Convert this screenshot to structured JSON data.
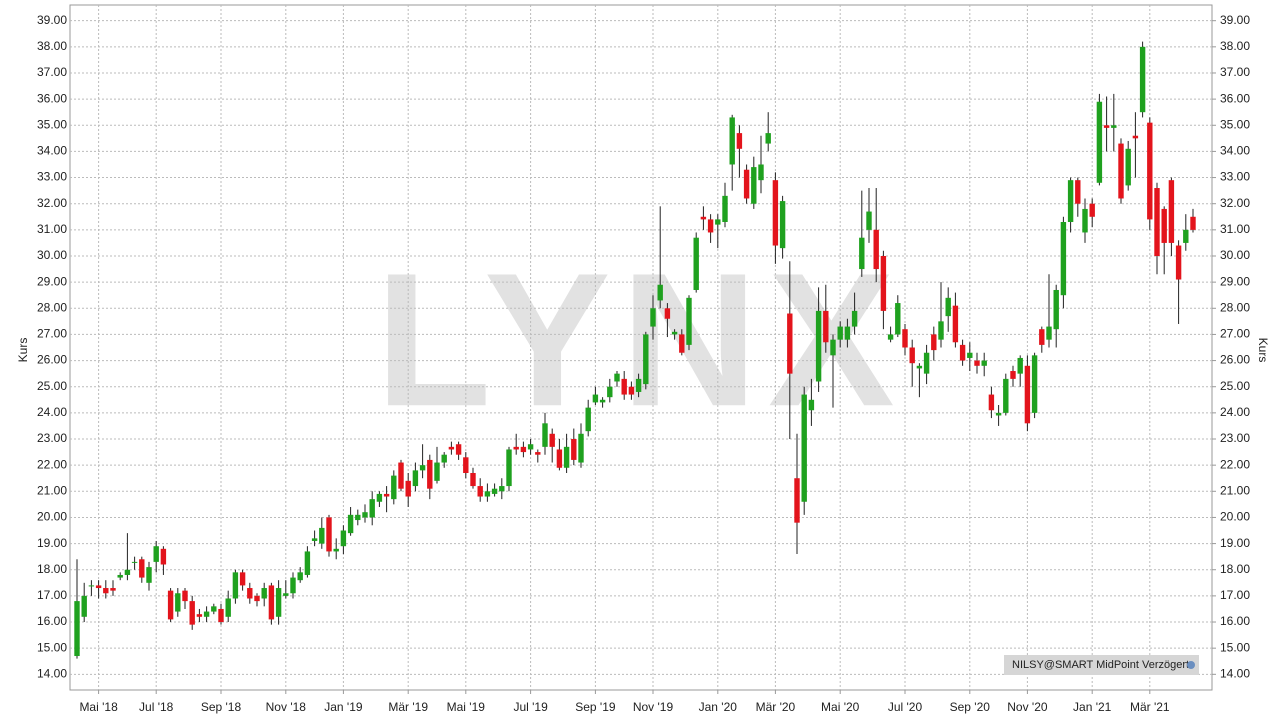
{
  "chart_data": {
    "type": "candlestick",
    "watermark": "LYNX",
    "ylabel": "Kurs",
    "note": "NILSY@SMART MidPoint Verzögert",
    "categories": [
      null,
      null,
      null,
      "Mai '18",
      null,
      null,
      null,
      null,
      null,
      null,
      null,
      "Jul '18",
      null,
      null,
      null,
      null,
      null,
      null,
      null,
      null,
      "Sep '18",
      null,
      null,
      null,
      null,
      null,
      null,
      null,
      null,
      "Nov '18",
      null,
      null,
      null,
      null,
      null,
      null,
      null,
      "Jan '19",
      null,
      null,
      null,
      null,
      null,
      null,
      null,
      null,
      "Mär '19",
      null,
      null,
      null,
      null,
      null,
      null,
      null,
      "Mai '19",
      null,
      null,
      null,
      null,
      null,
      null,
      null,
      null,
      "Jul '19",
      null,
      null,
      null,
      null,
      null,
      null,
      null,
      null,
      "Sep '19",
      null,
      null,
      null,
      null,
      null,
      null,
      null,
      "Nov '19",
      null,
      null,
      null,
      null,
      null,
      null,
      null,
      null,
      "Jan '20",
      null,
      null,
      null,
      null,
      null,
      null,
      null,
      "Mär '20",
      null,
      null,
      null,
      null,
      null,
      null,
      null,
      null,
      "Mai '20",
      null,
      null,
      null,
      null,
      null,
      null,
      null,
      null,
      "Jul '20",
      null,
      null,
      null,
      null,
      null,
      null,
      null,
      null,
      "Sep '20",
      null,
      null,
      null,
      null,
      null,
      null,
      null,
      "Nov '20",
      null,
      null,
      null,
      null,
      null,
      null,
      null,
      null,
      "Jan '21",
      null,
      null,
      null,
      null,
      null,
      null,
      null,
      "Mär '21",
      null,
      null,
      null,
      null,
      null,
      null
    ],
    "open": [
      14.7,
      16.2,
      17.4,
      17.4,
      17.3,
      17.3,
      17.7,
      17.8,
      18.3,
      18.4,
      17.5,
      18.3,
      18.8,
      17.2,
      16.4,
      17.2,
      16.8,
      16.3,
      16.2,
      16.4,
      16.5,
      16.2,
      16.9,
      17.9,
      17.3,
      17.0,
      16.9,
      17.4,
      16.2,
      17.0,
      17.1,
      17.6,
      17.8,
      19.1,
      19.0,
      20.0,
      18.7,
      18.9,
      19.4,
      19.9,
      20.0,
      20.0,
      20.6,
      20.9,
      20.7,
      22.1,
      21.4,
      21.2,
      21.8,
      22.2,
      21.4,
      22.1,
      22.7,
      22.8,
      22.3,
      21.7,
      21.2,
      20.8,
      20.9,
      21.0,
      21.2,
      22.7,
      22.7,
      22.6,
      22.5,
      22.7,
      23.2,
      22.6,
      21.9,
      23.0,
      22.1,
      23.3,
      24.4,
      24.4,
      24.6,
      25.2,
      25.3,
      25.0,
      24.8,
      25.1,
      27.3,
      28.3,
      28.0,
      27.0,
      27.0,
      26.6,
      28.7,
      31.5,
      31.4,
      31.2,
      31.3,
      33.5,
      34.7,
      33.3,
      32.0,
      32.9,
      34.3,
      32.9,
      30.3,
      27.8,
      21.5,
      20.6,
      24.1,
      25.2,
      27.9,
      26.2,
      26.8,
      26.8,
      27.3,
      29.5,
      31.0,
      31.0,
      30.0,
      26.8,
      27.0,
      27.2,
      26.5,
      25.7,
      25.5,
      27.0,
      26.8,
      27.7,
      28.1,
      26.6,
      26.1,
      26.0,
      25.8,
      24.7,
      23.9,
      24.0,
      25.6,
      25.5,
      25.8,
      24.0,
      27.2,
      26.8,
      27.2,
      28.5,
      31.3,
      32.9,
      30.9,
      32.0,
      32.8,
      35.0,
      34.9,
      34.3,
      32.7,
      34.6,
      35.5,
      35.1,
      32.6,
      31.8,
      32.9,
      30.4,
      30.5,
      31.5
    ],
    "high": [
      18.4,
      17.5,
      17.6,
      17.6,
      17.6,
      17.6,
      17.9,
      19.4,
      18.5,
      18.5,
      18.3,
      19.1,
      18.9,
      17.3,
      17.3,
      17.3,
      17.0,
      16.5,
      16.6,
      16.7,
      16.7,
      17.2,
      18.0,
      18.0,
      17.5,
      17.1,
      17.5,
      17.5,
      17.6,
      17.6,
      17.9,
      18.1,
      18.9,
      19.5,
      20.0,
      20.1,
      19.2,
      19.7,
      20.4,
      20.3,
      20.5,
      21.0,
      21.0,
      21.2,
      21.8,
      22.2,
      21.7,
      22.1,
      22.8,
      22.4,
      22.7,
      22.5,
      22.9,
      22.9,
      22.5,
      21.9,
      21.5,
      21.3,
      21.3,
      21.5,
      22.7,
      23.2,
      22.9,
      23.0,
      22.6,
      24.0,
      23.4,
      23.0,
      23.2,
      23.4,
      23.6,
      24.5,
      25.0,
      24.6,
      25.3,
      25.6,
      25.6,
      25.2,
      25.5,
      27.1,
      28.5,
      31.9,
      28.2,
      27.2,
      27.2,
      28.5,
      30.9,
      31.9,
      31.6,
      31.6,
      32.8,
      35.4,
      35.0,
      33.5,
      33.8,
      34.6,
      35.5,
      33.2,
      32.3,
      29.8,
      23.2,
      25.0,
      25.3,
      28.8,
      28.9,
      27.0,
      27.5,
      27.6,
      28.6,
      32.5,
      32.6,
      32.6,
      30.2,
      27.3,
      28.5,
      27.4,
      26.8,
      25.9,
      26.6,
      27.3,
      29.0,
      28.8,
      28.6,
      26.8,
      26.7,
      26.3,
      26.3,
      25.0,
      24.3,
      25.5,
      25.8,
      26.2,
      26.2,
      26.3,
      27.3,
      29.3,
      28.9,
      31.5,
      33.0,
      33.0,
      32.2,
      32.2,
      36.2,
      36.1,
      36.2,
      34.5,
      34.4,
      35.5,
      38.2,
      35.3,
      32.8,
      31.9,
      33.0,
      30.6,
      31.6,
      31.8
    ],
    "low": [
      14.6,
      16.0,
      17.0,
      16.9,
      16.9,
      17.0,
      17.6,
      17.6,
      18.0,
      17.5,
      17.2,
      17.9,
      17.8,
      16.0,
      16.2,
      16.5,
      15.7,
      16.0,
      16.0,
      16.3,
      15.9,
      16.0,
      16.7,
      17.2,
      16.7,
      16.6,
      16.6,
      15.9,
      15.9,
      16.9,
      16.9,
      17.5,
      17.7,
      18.9,
      18.8,
      18.5,
      18.4,
      18.6,
      19.3,
      19.7,
      19.8,
      19.7,
      20.4,
      20.2,
      20.5,
      21.0,
      20.4,
      21.0,
      21.5,
      20.7,
      21.3,
      21.9,
      22.4,
      22.2,
      21.5,
      21.1,
      20.6,
      20.6,
      20.8,
      20.7,
      21.0,
      22.4,
      22.3,
      22.4,
      22.1,
      22.4,
      22.1,
      21.8,
      21.7,
      22.0,
      21.9,
      23.1,
      24.3,
      24.2,
      24.4,
      25.0,
      24.5,
      24.5,
      24.6,
      24.9,
      26.8,
      28.0,
      26.9,
      26.8,
      26.2,
      26.4,
      28.6,
      31.0,
      30.5,
      30.3,
      31.1,
      32.5,
      33.0,
      32.0,
      31.8,
      32.4,
      34.0,
      29.7,
      29.9,
      23.0,
      18.6,
      20.1,
      23.5,
      24.8,
      26.3,
      24.2,
      26.5,
      26.5,
      27.0,
      29.2,
      30.5,
      29.0,
      27.2,
      26.7,
      26.9,
      26.2,
      25.0,
      24.6,
      25.1,
      26.0,
      26.5,
      27.1,
      26.5,
      25.8,
      25.6,
      25.5,
      25.4,
      23.8,
      23.5,
      23.9,
      25.0,
      25.0,
      23.3,
      23.8,
      26.3,
      26.5,
      26.5,
      28.0,
      30.9,
      31.5,
      30.5,
      31.1,
      32.7,
      34.0,
      34.0,
      32.0,
      32.5,
      33.0,
      35.3,
      31.0,
      29.3,
      29.3,
      30.0,
      27.4,
      30.2,
      30.9
    ],
    "close": [
      16.8,
      17.0,
      17.4,
      17.3,
      17.1,
      17.2,
      17.8,
      18.0,
      18.3,
      17.7,
      18.1,
      18.9,
      18.2,
      16.1,
      17.1,
      16.8,
      15.9,
      16.2,
      16.4,
      16.6,
      16.0,
      16.9,
      17.9,
      17.4,
      16.9,
      16.8,
      17.3,
      16.1,
      17.3,
      17.1,
      17.7,
      17.9,
      18.7,
      19.2,
      19.6,
      18.7,
      18.8,
      19.5,
      20.1,
      20.1,
      20.2,
      20.7,
      20.9,
      20.8,
      21.6,
      21.1,
      20.8,
      21.8,
      22.0,
      21.1,
      22.1,
      22.4,
      22.6,
      22.4,
      21.7,
      21.2,
      20.8,
      21.0,
      21.1,
      21.2,
      22.6,
      22.6,
      22.5,
      22.8,
      22.4,
      23.6,
      22.7,
      21.9,
      22.7,
      22.2,
      23.2,
      24.2,
      24.7,
      24.5,
      25.0,
      25.5,
      24.7,
      24.7,
      25.3,
      27.0,
      28.0,
      28.9,
      27.6,
      27.1,
      26.3,
      28.4,
      30.7,
      31.4,
      30.9,
      31.4,
      32.3,
      35.3,
      34.1,
      32.2,
      33.4,
      33.5,
      34.7,
      30.4,
      32.1,
      25.5,
      19.8,
      24.7,
      24.5,
      27.9,
      26.7,
      26.8,
      27.3,
      27.3,
      27.9,
      30.7,
      31.7,
      29.5,
      27.9,
      27.0,
      28.2,
      26.5,
      25.9,
      25.8,
      26.3,
      26.4,
      27.5,
      28.4,
      26.7,
      26.0,
      26.3,
      25.8,
      26.0,
      24.1,
      24.0,
      25.3,
      25.3,
      26.1,
      23.6,
      26.2,
      26.6,
      27.3,
      28.7,
      31.3,
      32.9,
      32.0,
      31.8,
      31.5,
      35.9,
      34.9,
      35.0,
      32.2,
      34.1,
      34.5,
      38.0,
      31.4,
      30.0,
      30.5,
      30.5,
      29.1,
      31.0,
      31.0
    ],
    "up_color": "#1fa11f",
    "down_color": "#e3141c",
    "ylim": [
      13.4,
      39.6
    ],
    "yticks": [
      {
        "value": 14,
        "label": "14.00"
      },
      {
        "value": 15,
        "label": "15.00"
      },
      {
        "value": 16,
        "label": "16.00"
      },
      {
        "value": 17,
        "label": "17.00"
      },
      {
        "value": 18,
        "label": "18.00"
      },
      {
        "value": 19,
        "label": "19.00"
      },
      {
        "value": 20,
        "label": "20.00"
      },
      {
        "value": 21,
        "label": "21.00"
      },
      {
        "value": 22,
        "label": "22.00"
      },
      {
        "value": 23,
        "label": "23.00"
      },
      {
        "value": 24,
        "label": "24.00"
      },
      {
        "value": 25,
        "label": "25.00"
      },
      {
        "value": 26,
        "label": "26.00"
      },
      {
        "value": 27,
        "label": "27.00"
      },
      {
        "value": 28,
        "label": "28.00"
      },
      {
        "value": 29,
        "label": "29.00"
      },
      {
        "value": 30,
        "label": "30.00"
      },
      {
        "value": 31,
        "label": "31.00"
      },
      {
        "value": 32,
        "label": "32.00"
      },
      {
        "value": 33,
        "label": "33.00"
      },
      {
        "value": 34,
        "label": "34.00"
      },
      {
        "value": 35,
        "label": "35.00"
      },
      {
        "value": 36,
        "label": "36.00"
      },
      {
        "value": 37,
        "label": "37.00"
      },
      {
        "value": 38,
        "label": "38.00"
      },
      {
        "value": 39,
        "label": "39.00"
      }
    ],
    "grid": true
  }
}
